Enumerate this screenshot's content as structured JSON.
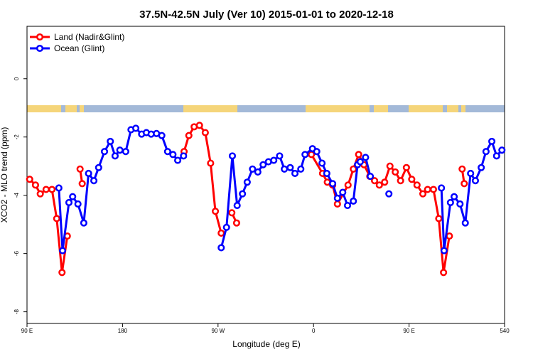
{
  "chart_data": {
    "type": "line",
    "title": "37.5N-42.5N July (Ver 10)   2015-01-01 to 2020-12-18",
    "x_label": "Longitude (deg E)",
    "y_label": "XCO2 - MLO trend (ppm)",
    "xlim": [
      90,
      540
    ],
    "ylim": [
      -8.4,
      1.8
    ],
    "xticks": [
      {
        "value": 90,
        "label": "90 E"
      },
      180,
      {
        "value": 270,
        "label": "90 W"
      },
      {
        "value": 360,
        "label": "0"
      },
      {
        "value": 450,
        "label": "90 E"
      },
      540
    ],
    "yticks": [
      0,
      -2,
      -4,
      -6,
      -8
    ],
    "legend": "top-left",
    "series": [
      {
        "name": "Land (Nadir&Glint)",
        "color": "#ff0000",
        "x": [
          92.5,
          98,
          102.5,
          108,
          113.5,
          118,
          123,
          128,
          null,
          140,
          142,
          null,
          238,
          242.5,
          247.5,
          252.5,
          258,
          263,
          267.5,
          273,
          null,
          283,
          287.5,
          null,
          358,
          368.5,
          373,
          378,
          382.5,
          392.5,
          397.5,
          402.5,
          407.5,
          413,
          417.5,
          422,
          427,
          432,
          437,
          442,
          447.5,
          452.5,
          457.5,
          463,
          467.5,
          473,
          478,
          482.5,
          488,
          null,
          500,
          502
        ],
        "values": [
          -3.45,
          -3.65,
          -3.95,
          -3.8,
          -3.8,
          -4.8,
          -6.65,
          -5.4,
          null,
          -3.1,
          -3.6,
          null,
          -2.5,
          -1.95,
          -1.65,
          -1.6,
          -1.85,
          -2.9,
          -4.55,
          -5.3,
          null,
          -4.6,
          -4.95,
          null,
          -2.6,
          -3.25,
          -3.55,
          -3.65,
          -4.3,
          -3.65,
          -3.1,
          -2.6,
          -2.95,
          -3.35,
          -3.5,
          -3.65,
          -3.55,
          -3.0,
          -3.2,
          -3.5,
          -3.05,
          -3.45,
          -3.65,
          -3.95,
          -3.8,
          -3.8,
          -4.8,
          -6.65,
          -5.4,
          null,
          -3.1,
          -3.6
        ]
      },
      {
        "name": "Ocean (Glint)",
        "color": "#0000ff",
        "x": [
          120,
          123.5,
          129.5,
          133,
          138,
          143.5,
          148,
          153,
          157.5,
          163,
          168.5,
          173,
          177.5,
          183,
          188,
          192.5,
          198,
          202.5,
          207,
          212,
          217,
          222.5,
          227.5,
          232,
          237.5,
          null,
          273,
          278,
          283.5,
          288,
          293,
          297.5,
          302.5,
          307.5,
          312.5,
          317.5,
          322.5,
          328,
          332.5,
          338,
          342.5,
          348,
          352,
          359,
          363,
          368,
          372.5,
          378,
          382.5,
          387.5,
          392,
          397.5,
          401.5,
          404,
          409,
          413.5,
          null,
          431,
          null,
          480.5,
          483,
          489,
          492.5,
          498,
          503,
          508,
          512.5,
          518,
          522.5,
          528,
          532.5,
          537.5
        ],
        "values": [
          -3.75,
          -5.9,
          -4.25,
          -4.05,
          -4.3,
          -4.95,
          -3.25,
          -3.5,
          -3.05,
          -2.5,
          -2.15,
          -2.65,
          -2.45,
          -2.5,
          -1.75,
          -1.7,
          -1.9,
          -1.85,
          -1.9,
          -1.88,
          -1.95,
          -2.5,
          -2.6,
          -2.8,
          -2.65,
          null,
          -5.8,
          -5.1,
          -2.65,
          -4.35,
          -3.95,
          -3.55,
          -3.1,
          -3.2,
          -2.95,
          -2.85,
          -2.8,
          -2.65,
          -3.1,
          -3.05,
          -3.25,
          -3.1,
          -2.6,
          -2.4,
          -2.5,
          -2.9,
          -3.25,
          -3.6,
          -4.1,
          -3.9,
          -4.35,
          -4.2,
          -2.95,
          -2.85,
          -2.7,
          -3.35,
          null,
          -3.95,
          null,
          -3.75,
          -5.9,
          -4.25,
          -4.05,
          -4.3,
          -4.95,
          -3.25,
          -3.5,
          -3.05,
          -2.5,
          -2.15,
          -2.65,
          -2.45
        ]
      }
    ]
  }
}
